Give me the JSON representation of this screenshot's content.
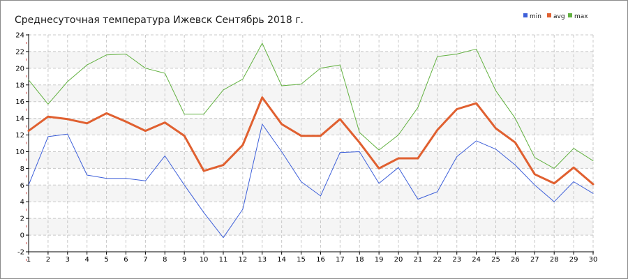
{
  "chart_data": {
    "type": "line",
    "title": "Среднесуточная температура Ижевск  Сентябрь 2018 г.",
    "x": [
      1,
      2,
      3,
      4,
      5,
      6,
      7,
      8,
      9,
      10,
      11,
      12,
      13,
      14,
      15,
      16,
      17,
      18,
      19,
      20,
      21,
      22,
      23,
      24,
      25,
      26,
      27,
      28,
      29,
      30
    ],
    "x_ticks": [
      "1",
      "2",
      "3",
      "4",
      "5",
      "6",
      "7",
      "8",
      "9",
      "10",
      "11",
      "12",
      "13",
      "14",
      "15",
      "16",
      "17",
      "18",
      "19",
      "20",
      "21",
      "22",
      "23",
      "24",
      "25",
      "26",
      "27",
      "28",
      "29",
      "30"
    ],
    "ylim": [
      -2,
      24
    ],
    "y_ticks": [
      "-2",
      "0",
      "2",
      "4",
      "6",
      "8",
      "10",
      "12",
      "14",
      "16",
      "18",
      "20",
      "22",
      "24"
    ],
    "grid": true,
    "legend_position": "top-right",
    "series": [
      {
        "name": "min",
        "color": "#3d5fd9",
        "values": [
          6.0,
          11.8,
          12.1,
          7.2,
          6.8,
          6.8,
          6.5,
          9.5,
          6.0,
          2.7,
          -0.3,
          3.1,
          13.3,
          10.0,
          6.4,
          4.7,
          9.9,
          10.0,
          6.2,
          8.1,
          4.3,
          5.2,
          9.4,
          11.3,
          10.3,
          8.4,
          6.0,
          4.0,
          6.4,
          5.0
        ]
      },
      {
        "name": "avg",
        "color": "#e06030",
        "values": [
          12.5,
          14.2,
          13.9,
          13.4,
          14.6,
          13.6,
          12.5,
          13.5,
          11.9,
          7.7,
          8.4,
          10.8,
          16.5,
          13.3,
          11.9,
          11.9,
          13.9,
          11.1,
          8.0,
          9.2,
          9.2,
          12.6,
          15.1,
          15.8,
          12.8,
          11.1,
          7.3,
          6.2,
          8.1,
          6.1
        ]
      },
      {
        "name": "max",
        "color": "#62b140",
        "values": [
          18.6,
          15.7,
          18.4,
          20.4,
          21.6,
          21.7,
          20.0,
          19.4,
          14.5,
          14.5,
          17.4,
          18.7,
          23.0,
          17.9,
          18.1,
          20.0,
          20.4,
          12.3,
          10.2,
          12.0,
          15.3,
          21.4,
          21.7,
          22.3,
          17.3,
          14.0,
          9.3,
          8.0,
          10.4,
          8.9
        ]
      }
    ]
  }
}
